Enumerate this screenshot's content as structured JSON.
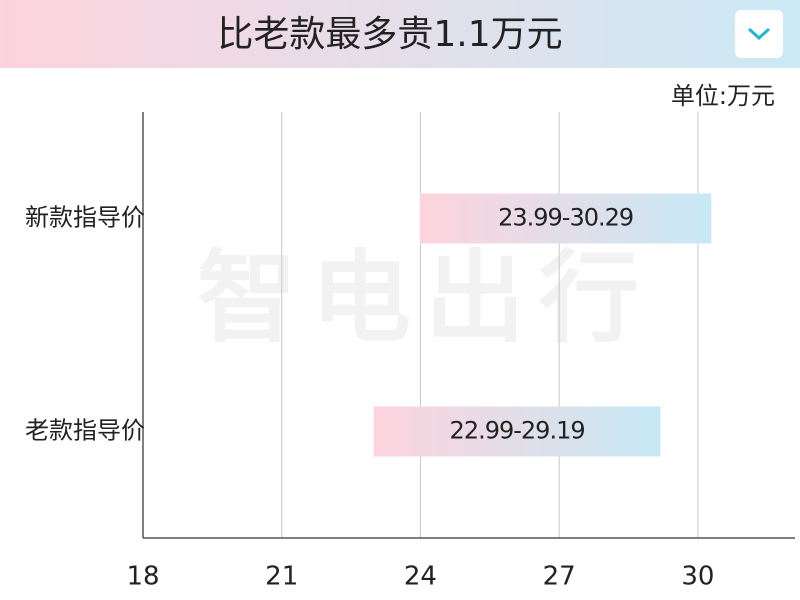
{
  "chart_data": {
    "type": "range_bar",
    "orientation": "horizontal",
    "title": "比老款最多贵1.1万元",
    "unit_label": "单位:万元",
    "watermark": "智电出行",
    "categories": [
      "新款指导价",
      "老款指导价"
    ],
    "values": [
      [
        23.99,
        30.29
      ],
      [
        22.99,
        29.19
      ]
    ],
    "value_labels": [
      "23.99-30.29",
      "22.99-29.19"
    ],
    "colors": [
      "#fdd3dd",
      "#c6e9f5"
    ],
    "xlim": [
      18,
      32.1
    ],
    "xticks": [
      18,
      21,
      24,
      27,
      30
    ],
    "grid": true
  }
}
